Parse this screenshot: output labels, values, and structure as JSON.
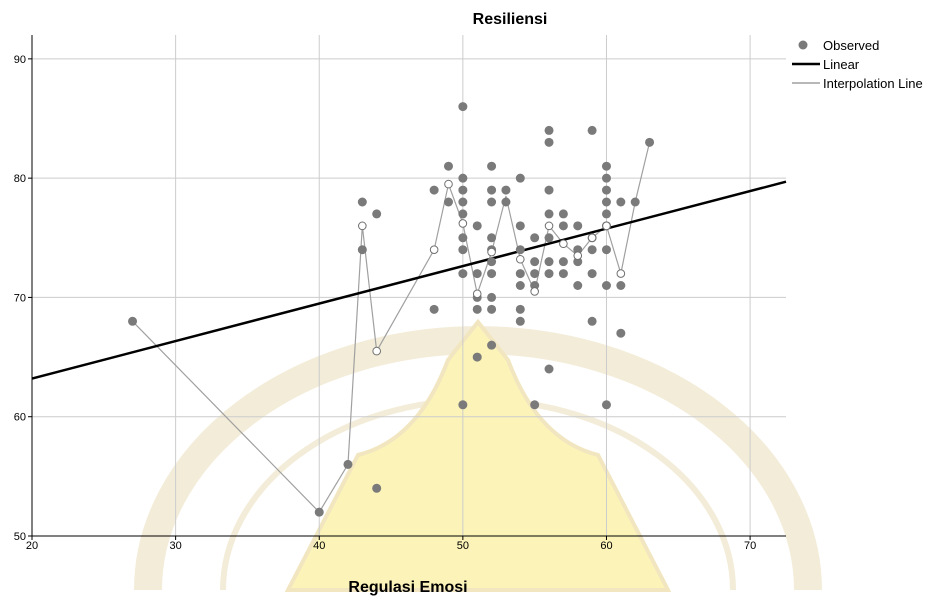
{
  "chart_data": {
    "type": "scatter",
    "title": "Resiliensi",
    "xlabel": "Regulasi Emosi",
    "ylabel": "",
    "xlim": [
      20,
      72.5
    ],
    "ylim": [
      50,
      92
    ],
    "xticks": [
      20,
      30,
      40,
      50,
      60,
      70
    ],
    "yticks": [
      50,
      60,
      70,
      80,
      90
    ],
    "grid": true,
    "legend_position": "top-right",
    "legend": [
      "Observed",
      "Linear",
      "Interpolation Line"
    ],
    "colors": {
      "observed": "#7a7a7a",
      "linear": "#000000",
      "interpolation": "#a0a0a0",
      "grid": "#cccccc",
      "axis": "#000000"
    },
    "series": [
      {
        "name": "Observed",
        "points": [
          [
            27,
            68
          ],
          [
            40,
            52
          ],
          [
            42,
            56
          ],
          [
            43,
            78
          ],
          [
            43,
            74
          ],
          [
            44,
            77
          ],
          [
            44,
            54
          ],
          [
            48,
            79
          ],
          [
            48,
            69
          ],
          [
            49,
            81
          ],
          [
            49,
            78
          ],
          [
            50,
            86
          ],
          [
            50,
            80
          ],
          [
            50,
            79
          ],
          [
            50,
            78
          ],
          [
            50,
            77
          ],
          [
            50,
            75
          ],
          [
            50,
            74
          ],
          [
            50,
            72
          ],
          [
            50,
            61
          ],
          [
            51,
            76
          ],
          [
            51,
            72
          ],
          [
            51,
            70
          ],
          [
            51,
            69
          ],
          [
            51,
            65
          ],
          [
            52,
            81
          ],
          [
            52,
            79
          ],
          [
            52,
            78
          ],
          [
            52,
            75
          ],
          [
            52,
            74
          ],
          [
            52,
            73
          ],
          [
            52,
            72
          ],
          [
            52,
            70
          ],
          [
            52,
            69
          ],
          [
            52,
            66
          ],
          [
            53,
            79
          ],
          [
            53,
            78
          ],
          [
            54,
            80
          ],
          [
            54,
            76
          ],
          [
            54,
            74
          ],
          [
            54,
            72
          ],
          [
            54,
            71
          ],
          [
            54,
            69
          ],
          [
            54,
            68
          ],
          [
            55,
            75
          ],
          [
            55,
            73
          ],
          [
            55,
            72
          ],
          [
            55,
            71
          ],
          [
            55,
            61
          ],
          [
            56,
            84
          ],
          [
            56,
            83
          ],
          [
            56,
            79
          ],
          [
            56,
            77
          ],
          [
            56,
            75
          ],
          [
            56,
            73
          ],
          [
            56,
            72
          ],
          [
            56,
            64
          ],
          [
            57,
            77
          ],
          [
            57,
            76
          ],
          [
            57,
            73
          ],
          [
            57,
            72
          ],
          [
            58,
            76
          ],
          [
            58,
            74
          ],
          [
            58,
            73
          ],
          [
            58,
            71
          ],
          [
            59,
            84
          ],
          [
            59,
            75
          ],
          [
            59,
            74
          ],
          [
            59,
            72
          ],
          [
            59,
            68
          ],
          [
            60,
            81
          ],
          [
            60,
            80
          ],
          [
            60,
            79
          ],
          [
            60,
            78
          ],
          [
            60,
            77
          ],
          [
            60,
            76
          ],
          [
            60,
            74
          ],
          [
            60,
            71
          ],
          [
            60,
            61
          ],
          [
            61,
            78
          ],
          [
            61,
            71
          ],
          [
            61,
            67
          ],
          [
            62,
            78
          ],
          [
            63,
            83
          ]
        ]
      },
      {
        "name": "Linear",
        "line": [
          [
            20,
            63.2
          ],
          [
            72.5,
            79.7
          ]
        ]
      },
      {
        "name": "Interpolation Line",
        "points": [
          [
            27,
            68
          ],
          [
            40,
            52
          ],
          [
            42,
            56
          ],
          [
            43,
            76
          ],
          [
            44,
            65.5
          ],
          [
            48,
            74
          ],
          [
            49,
            79.5
          ],
          [
            50,
            76.2
          ],
          [
            51,
            70.3
          ],
          [
            52,
            73.8
          ],
          [
            53,
            78.5
          ],
          [
            54,
            73.2
          ],
          [
            55,
            70.5
          ],
          [
            56,
            76
          ],
          [
            57,
            74.5
          ],
          [
            58,
            73.5
          ],
          [
            59,
            75
          ],
          [
            60,
            76
          ],
          [
            61,
            72
          ],
          [
            62,
            78
          ],
          [
            63,
            83
          ]
        ],
        "hollow_markers": [
          [
            43,
            76
          ],
          [
            44,
            65.5
          ],
          [
            48,
            74
          ],
          [
            49,
            79.5
          ],
          [
            50,
            76.2
          ],
          [
            51,
            70.3
          ],
          [
            52,
            73.8
          ],
          [
            54,
            73.2
          ],
          [
            55,
            70.5
          ],
          [
            56,
            76
          ],
          [
            57,
            74.5
          ],
          [
            58,
            73.5
          ],
          [
            59,
            75
          ],
          [
            60,
            76
          ],
          [
            61,
            72
          ]
        ]
      }
    ]
  }
}
